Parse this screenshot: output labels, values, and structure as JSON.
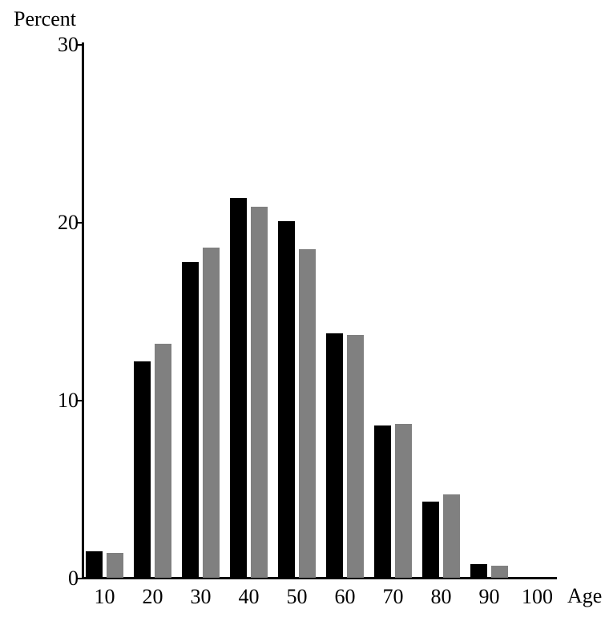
{
  "chart_data": {
    "type": "bar",
    "title": "",
    "xlabel": "Age",
    "ylabel": "Percent",
    "categories": [
      10,
      20,
      30,
      40,
      50,
      60,
      70,
      80,
      90,
      100
    ],
    "series": [
      {
        "name": "black",
        "color": "#000000",
        "values": [
          1.5,
          12.2,
          17.8,
          21.4,
          20.1,
          13.8,
          8.6,
          4.3,
          0.8,
          0
        ]
      },
      {
        "name": "gray",
        "color": "#808080",
        "values": [
          1.4,
          13.2,
          18.6,
          20.9,
          18.5,
          13.7,
          8.7,
          4.7,
          0.7,
          0
        ]
      }
    ],
    "ylim": [
      0,
      30
    ],
    "yticks": [
      0,
      10,
      20,
      30
    ],
    "grid": false,
    "legend": "none",
    "background_color": "#ffffff",
    "axis_color": "#000000"
  }
}
